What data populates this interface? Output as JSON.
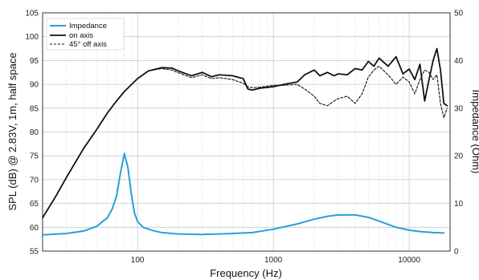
{
  "chart_data": {
    "type": "line",
    "xlabel": "Frequency (Hz)",
    "ylabel": "SPL (dB) @ 2.83V, 1m, half space",
    "y2label": "Impedance (Ohm)",
    "xscale": "log",
    "xlim": [
      20,
      20000
    ],
    "ylim": [
      55,
      105
    ],
    "y2lim": [
      0,
      50
    ],
    "xticks": [
      100,
      1000,
      10000
    ],
    "xtick_labels": [
      "100",
      "1000",
      "10000"
    ],
    "yticks": [
      55,
      60,
      65,
      70,
      75,
      80,
      85,
      90,
      95,
      100,
      105
    ],
    "ytick_labels": [
      "55",
      "60",
      "65",
      "70",
      "75",
      "80",
      "85",
      "90",
      "95",
      "100",
      "105"
    ],
    "y2ticks": [
      0,
      10,
      20,
      30,
      40,
      50
    ],
    "y2tick_labels": [
      "0",
      "10",
      "20",
      "30",
      "40",
      "50"
    ],
    "grid": true,
    "legend_position": "top-left",
    "series": [
      {
        "name": "Impedance",
        "axis": "right",
        "color": "#2a9fd8",
        "style": "solid",
        "x": [
          20,
          30,
          40,
          50,
          60,
          65,
          70,
          75,
          80,
          85,
          90,
          95,
          100,
          110,
          130,
          150,
          200,
          300,
          400,
          500,
          700,
          1000,
          1500,
          2000,
          2500,
          3000,
          3500,
          4000,
          5000,
          6000,
          7000,
          8000,
          10000,
          12000,
          15000,
          18000
        ],
        "y": [
          3.4,
          3.7,
          4.2,
          5.2,
          7.0,
          8.8,
          11.5,
          16.5,
          20.5,
          17.5,
          12.0,
          8.0,
          6.2,
          5.0,
          4.3,
          3.9,
          3.6,
          3.5,
          3.6,
          3.7,
          3.9,
          4.6,
          5.7,
          6.7,
          7.3,
          7.6,
          7.6,
          7.6,
          7.1,
          6.3,
          5.6,
          5.0,
          4.4,
          4.1,
          3.9,
          3.8
        ]
      },
      {
        "name": "on axis",
        "axis": "left",
        "color": "#111111",
        "style": "solid",
        "x": [
          20,
          25,
          30,
          40,
          50,
          60,
          70,
          80,
          100,
          120,
          150,
          180,
          200,
          250,
          300,
          350,
          400,
          500,
          600,
          650,
          700,
          800,
          1000,
          1200,
          1500,
          1700,
          2000,
          2200,
          2500,
          2800,
          3000,
          3500,
          4000,
          4500,
          5000,
          5500,
          6000,
          7000,
          8000,
          9000,
          10000,
          11000,
          12000,
          13000,
          14000,
          15000,
          16000,
          17000,
          18000,
          19000
        ],
        "y": [
          62.0,
          66.5,
          70.5,
          76.5,
          80.5,
          84.0,
          86.5,
          88.5,
          91.2,
          92.8,
          93.5,
          93.4,
          92.8,
          91.8,
          92.5,
          91.6,
          92.0,
          91.8,
          91.2,
          89.0,
          88.8,
          89.2,
          89.5,
          90.0,
          90.5,
          92.0,
          93.0,
          91.8,
          92.5,
          91.8,
          92.2,
          92.0,
          93.3,
          93.0,
          94.8,
          93.8,
          95.5,
          93.8,
          95.8,
          92.2,
          93.2,
          91.0,
          94.2,
          86.5,
          91.0,
          95.0,
          97.5,
          93.0,
          86.0,
          85.5
        ]
      },
      {
        "name": "45° off axis",
        "axis": "left",
        "color": "#111111",
        "style": "dashed",
        "x": [
          20,
          25,
          30,
          40,
          50,
          60,
          70,
          80,
          100,
          120,
          150,
          180,
          200,
          250,
          300,
          350,
          400,
          500,
          600,
          650,
          700,
          800,
          1000,
          1200,
          1500,
          1700,
          2000,
          2200,
          2500,
          2800,
          3000,
          3500,
          4000,
          4500,
          5000,
          5500,
          6000,
          7000,
          8000,
          9000,
          10000,
          11000,
          12000,
          13000,
          14000,
          15000,
          16000,
          17000,
          18000,
          19000
        ],
        "y": [
          62.0,
          66.5,
          70.5,
          76.5,
          80.5,
          84.0,
          86.5,
          88.5,
          91.2,
          92.8,
          93.3,
          93.0,
          92.4,
          91.4,
          92.0,
          91.2,
          91.4,
          91.0,
          90.2,
          89.5,
          89.3,
          89.4,
          89.8,
          89.8,
          90.0,
          89.0,
          87.5,
          86.0,
          85.5,
          86.5,
          87.0,
          87.5,
          86.0,
          88.0,
          91.5,
          93.0,
          93.8,
          92.0,
          90.0,
          91.5,
          90.5,
          88.0,
          91.0,
          93.0,
          92.5,
          91.0,
          92.0,
          86.0,
          83.0,
          85.0
        ]
      }
    ]
  }
}
